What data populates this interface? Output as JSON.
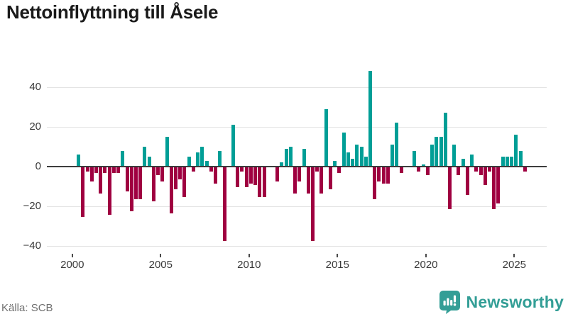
{
  "title": "Nettoinflyttning till Åsele",
  "footer": {
    "source": "Källa: SCB"
  },
  "brand": {
    "name": "Newsworthy",
    "icon": "newsworthy-speech-bubble-chart-icon",
    "color": "#339e96"
  },
  "colors": {
    "positive_bar": "#009e96",
    "negative_bar": "#9f0040",
    "zero_line": "#3d3d3d",
    "gridline": "#e4e4e4",
    "axis_text": "#3a3a3a"
  },
  "chart_data": {
    "type": "bar",
    "title": "Nettoinflyttning till Åsele",
    "frequency": "quarterly",
    "x_start": "2000-Q2",
    "x_end": "2025-Q3",
    "xlabel": "",
    "ylabel": "",
    "ylim": [
      -42,
      50
    ],
    "grid": true,
    "legend": false,
    "yticks": [
      40,
      20,
      0,
      -20,
      -40
    ],
    "ytick_labels": [
      "40",
      "20",
      "0",
      "−20",
      "−40"
    ],
    "xticks": [
      2000,
      2005,
      2010,
      2015,
      2020,
      2025
    ],
    "xtick_labels": [
      "2000",
      "2005",
      "2010",
      "2015",
      "2020",
      "2025"
    ],
    "values": [
      6,
      -25,
      -2,
      -7,
      -3,
      -13,
      -3,
      -24,
      -3,
      -3,
      8,
      -12,
      -22,
      -16,
      -16,
      10,
      5,
      -17,
      -4,
      -7,
      15,
      -23,
      -11,
      -6,
      -15,
      5,
      -2,
      7,
      10,
      3,
      -2,
      -8,
      8,
      -37,
      0,
      21,
      -10,
      -2,
      -10,
      -8,
      -9,
      -15,
      -15,
      0,
      0,
      -7,
      2,
      9,
      10,
      -13,
      -7,
      9,
      -13,
      -37,
      -2,
      -13,
      29,
      -11,
      3,
      -3,
      17,
      7,
      4,
      11,
      10,
      5,
      48,
      -16,
      -7,
      -8,
      -8,
      11,
      22,
      -3,
      0,
      0,
      8,
      -2,
      1,
      -4,
      11,
      15,
      15,
      27,
      -21,
      11,
      -4,
      4,
      -14,
      6,
      -2,
      -4,
      -9,
      -2,
      -21,
      -18,
      5,
      5,
      5,
      16,
      8,
      -2
    ]
  }
}
